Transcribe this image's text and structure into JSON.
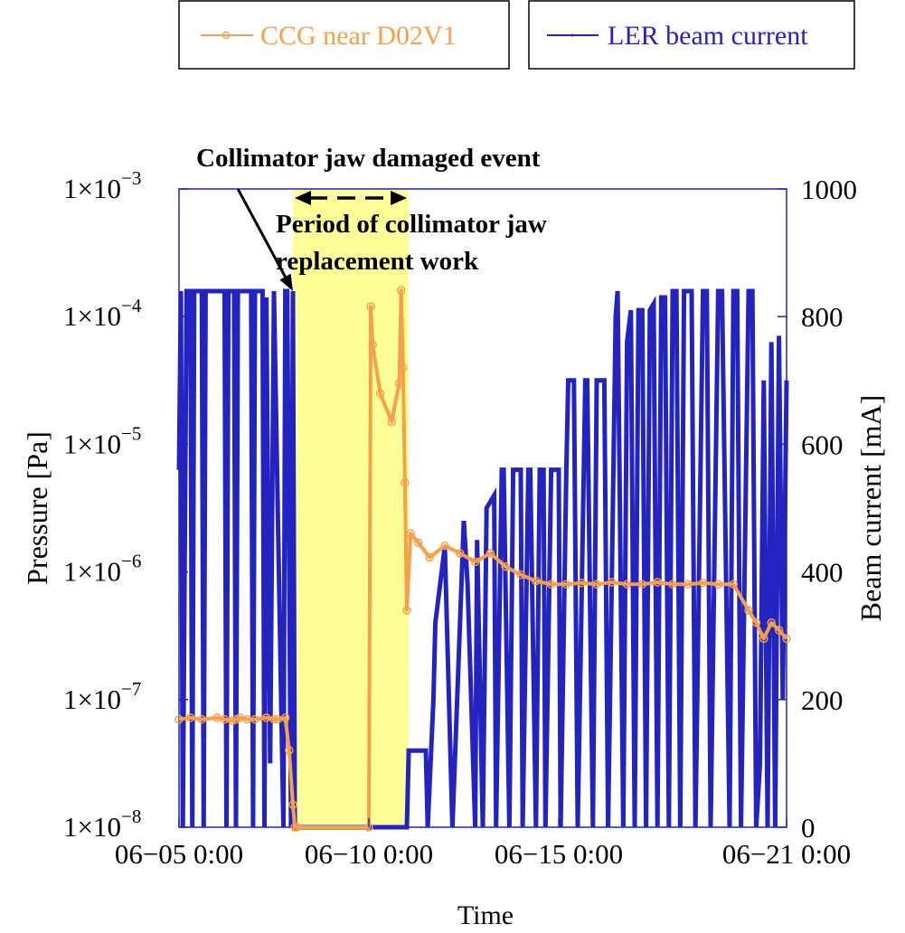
{
  "chart_data": {
    "type": "line",
    "xlabel": "Time",
    "ylabel_left": "Pressure [Pa]",
    "ylabel_right": "Beam current [mA]",
    "x_unit": "days since 06-05 0:00",
    "xlim": [
      0,
      16
    ],
    "x_ticks": [
      {
        "value": 0,
        "label": "06−05 0:00"
      },
      {
        "value": 5,
        "label": "06−10 0:00"
      },
      {
        "value": 10,
        "label": "06−15 0:00"
      },
      {
        "value": 16,
        "label": "06−21 0:00"
      }
    ],
    "y_left": {
      "scale": "log",
      "lim": [
        1e-08,
        0.001
      ],
      "ticks": [
        {
          "value": 1e-08,
          "mantissa": "1×10",
          "exp": "−8"
        },
        {
          "value": 1e-07,
          "mantissa": "1×10",
          "exp": "−7"
        },
        {
          "value": 1e-06,
          "mantissa": "1×10",
          "exp": "−6"
        },
        {
          "value": 1e-05,
          "mantissa": "1×10",
          "exp": "−5"
        },
        {
          "value": 0.0001,
          "mantissa": "1×10",
          "exp": "−4"
        },
        {
          "value": 0.001,
          "mantissa": "1×10",
          "exp": "−3"
        }
      ]
    },
    "y_right": {
      "scale": "linear",
      "lim": [
        0,
        1000
      ],
      "ticks": [
        {
          "value": 0,
          "label": "0"
        },
        {
          "value": 200,
          "label": "200"
        },
        {
          "value": 400,
          "label": "400"
        },
        {
          "value": 600,
          "label": "600"
        },
        {
          "value": 800,
          "label": "800"
        },
        {
          "value": 1000,
          "label": "1000"
        }
      ]
    },
    "legend": {
      "placement": "top",
      "entries": [
        {
          "label": "CCG near D02V1",
          "color": "#f7a048"
        },
        {
          "label": "LER beam current",
          "color": "#2323c0"
        }
      ]
    },
    "annotations": {
      "event_label": "Collimator jaw damaged event",
      "event_arrow_from": [
        1.55,
        1000
      ],
      "event_arrow_to": [
        3.0,
        840
      ],
      "period_label_line1": "Period of collimator jaw",
      "period_label_line2": "replacement work",
      "period_span": [
        3.0,
        6.05
      ],
      "period_color": "#ffff99"
    },
    "series": [
      {
        "name": "LER beam current",
        "axis": "right",
        "color": "#2323c0",
        "x": [
          0.0,
          0.05,
          0.1,
          0.2,
          0.3,
          0.35,
          0.4,
          0.6,
          0.65,
          0.7,
          1.2,
          1.25,
          1.3,
          1.45,
          1.5,
          1.55,
          1.9,
          1.95,
          2.0,
          2.2,
          2.25,
          2.3,
          2.4,
          2.5,
          2.6,
          2.75,
          2.8,
          2.85,
          2.95,
          3.0,
          3.05,
          6.0,
          6.05,
          6.1,
          6.5,
          6.55,
          6.7,
          6.75,
          7.0,
          7.2,
          7.5,
          7.6,
          7.8,
          7.85,
          8.0,
          8.1,
          8.3,
          8.35,
          8.5,
          8.55,
          8.7,
          8.8,
          9.0,
          9.05,
          9.2,
          9.25,
          9.4,
          9.5,
          9.6,
          9.65,
          9.8,
          9.9,
          10.0,
          10.05,
          10.2,
          10.25,
          10.4,
          10.5,
          10.7,
          10.75,
          10.9,
          11.0,
          11.2,
          11.3,
          11.5,
          11.55,
          11.7,
          11.8,
          11.9,
          12.0,
          12.1,
          12.2,
          12.3,
          12.4,
          12.5,
          12.6,
          12.7,
          12.8,
          12.9,
          13.0,
          13.1,
          13.2,
          13.3,
          13.5,
          13.6,
          13.8,
          13.9,
          14.0,
          14.2,
          14.3,
          14.5,
          14.6,
          14.7,
          14.8,
          15.0,
          15.1,
          15.2,
          15.3,
          15.4,
          15.5,
          15.6,
          15.7,
          15.8,
          15.9,
          16.0
        ],
        "values": [
          560,
          840,
          0,
          840,
          840,
          0,
          840,
          840,
          0,
          840,
          840,
          0,
          840,
          840,
          0,
          840,
          840,
          0,
          840,
          840,
          0,
          830,
          100,
          840,
          500,
          0,
          840,
          840,
          0,
          840,
          0,
          0,
          120,
          120,
          120,
          0,
          200,
          320,
          440,
          0,
          480,
          380,
          0,
          450,
          0,
          500,
          520,
          0,
          560,
          560,
          0,
          560,
          560,
          0,
          560,
          560,
          0,
          560,
          560,
          0,
          560,
          560,
          560,
          0,
          560,
          700,
          700,
          0,
          700,
          700,
          0,
          700,
          700,
          0,
          800,
          840,
          0,
          760,
          810,
          0,
          810,
          810,
          0,
          810,
          820,
          0,
          830,
          830,
          0,
          840,
          840,
          0,
          840,
          840,
          0,
          840,
          840,
          0,
          840,
          840,
          0,
          840,
          840,
          0,
          840,
          840,
          0,
          100,
          700,
          0,
          760,
          0,
          770,
          200,
          700
        ]
      },
      {
        "name": "CCG near D02V1",
        "axis": "left",
        "color": "#f7a048",
        "x": [
          0.0,
          0.3,
          0.6,
          1.0,
          1.2,
          1.4,
          1.5,
          1.6,
          1.8,
          2.0,
          2.3,
          2.5,
          2.6,
          2.8,
          2.9,
          3.0,
          3.05,
          3.1,
          5.0,
          5.05,
          5.1,
          5.3,
          5.6,
          5.8,
          5.85,
          5.9,
          5.95,
          6.0,
          6.1,
          6.3,
          6.6,
          7.0,
          7.4,
          7.8,
          8.2,
          8.6,
          9.0,
          9.4,
          9.8,
          10.2,
          10.6,
          11.0,
          11.4,
          11.8,
          12.2,
          12.6,
          13.0,
          13.4,
          13.8,
          14.2,
          14.6,
          15.0,
          15.2,
          15.4,
          15.6,
          15.8,
          16.0
        ],
        "values": [
          7e-08,
          7.2e-08,
          7e-08,
          7.2e-08,
          7e-08,
          6.8e-08,
          7e-08,
          7.2e-08,
          7e-08,
          7e-08,
          7.2e-08,
          7e-08,
          7e-08,
          7.2e-08,
          4e-08,
          1.5e-08,
          1e-08,
          1e-08,
          1e-08,
          0.00012,
          6e-05,
          2.5e-05,
          1.5e-05,
          3e-05,
          0.00016,
          4e-05,
          5e-06,
          5e-07,
          2e-06,
          1.7e-06,
          1.3e-06,
          1.6e-06,
          1.4e-06,
          1.2e-06,
          1.4e-06,
          1.1e-06,
          9.5e-07,
          8.5e-07,
          8e-07,
          8e-07,
          8.2e-07,
          8e-07,
          8.3e-07,
          8e-07,
          8e-07,
          8.3e-07,
          8e-07,
          8e-07,
          8.2e-07,
          8e-07,
          8e-07,
          5e-07,
          4e-07,
          3e-07,
          4e-07,
          3.5e-07,
          3e-07
        ]
      }
    ]
  }
}
